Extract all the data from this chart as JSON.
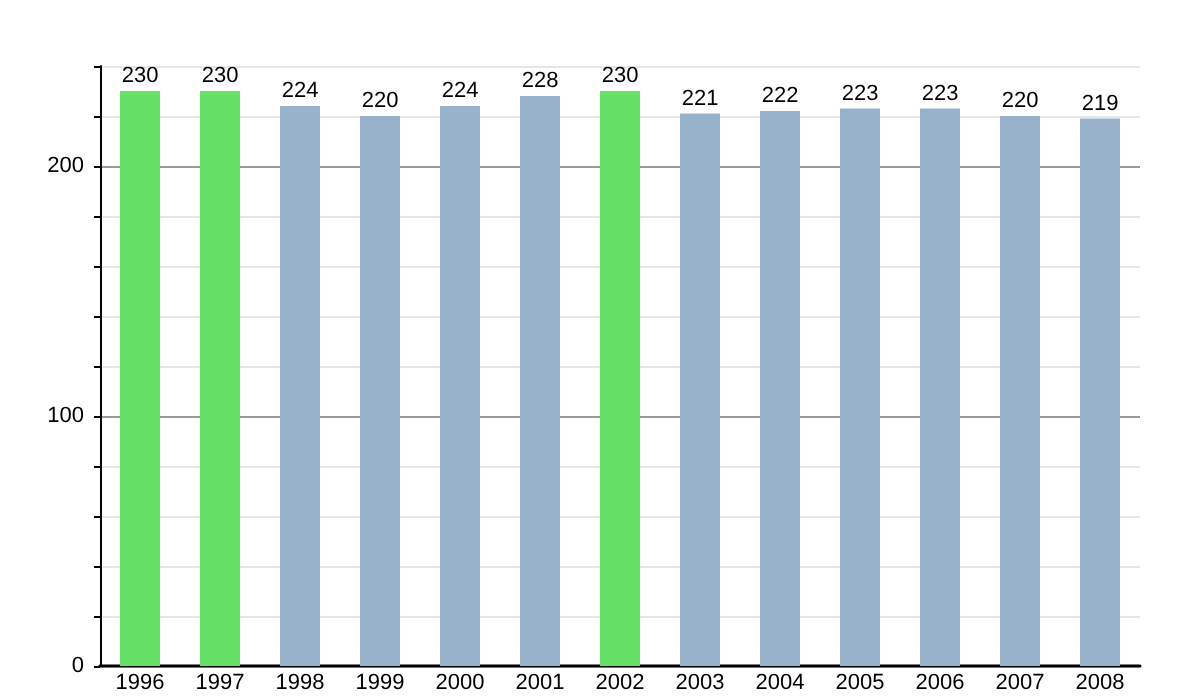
{
  "chart_data": {
    "type": "bar",
    "categories": [
      "1996",
      "1997",
      "1998",
      "1999",
      "2000",
      "2001",
      "2002",
      "2003",
      "2004",
      "2005",
      "2006",
      "2007",
      "2008"
    ],
    "values": [
      230,
      230,
      224,
      220,
      224,
      228,
      230,
      221,
      222,
      223,
      223,
      220,
      219
    ],
    "colors": [
      "#66e066",
      "#66e066",
      "#98b2cc",
      "#98b2cc",
      "#98b2cc",
      "#98b2cc",
      "#66e066",
      "#98b2cc",
      "#98b2cc",
      "#98b2cc",
      "#98b2cc",
      "#98b2cc",
      "#98b2cc"
    ],
    "ylim": [
      0,
      240
    ],
    "yticks": [
      0,
      {
        "value": 20,
        "label": null
      },
      {
        "value": 40,
        "label": null
      },
      {
        "value": 60,
        "label": null
      },
      {
        "value": 80,
        "label": null
      },
      100,
      {
        "value": 120,
        "label": null
      },
      {
        "value": 140,
        "label": null
      },
      {
        "value": 160,
        "label": null
      },
      {
        "value": 180,
        "label": null
      },
      200,
      {
        "value": 220,
        "label": null
      },
      {
        "value": 240,
        "label": null
      }
    ],
    "grid": true,
    "data_labels": true
  }
}
